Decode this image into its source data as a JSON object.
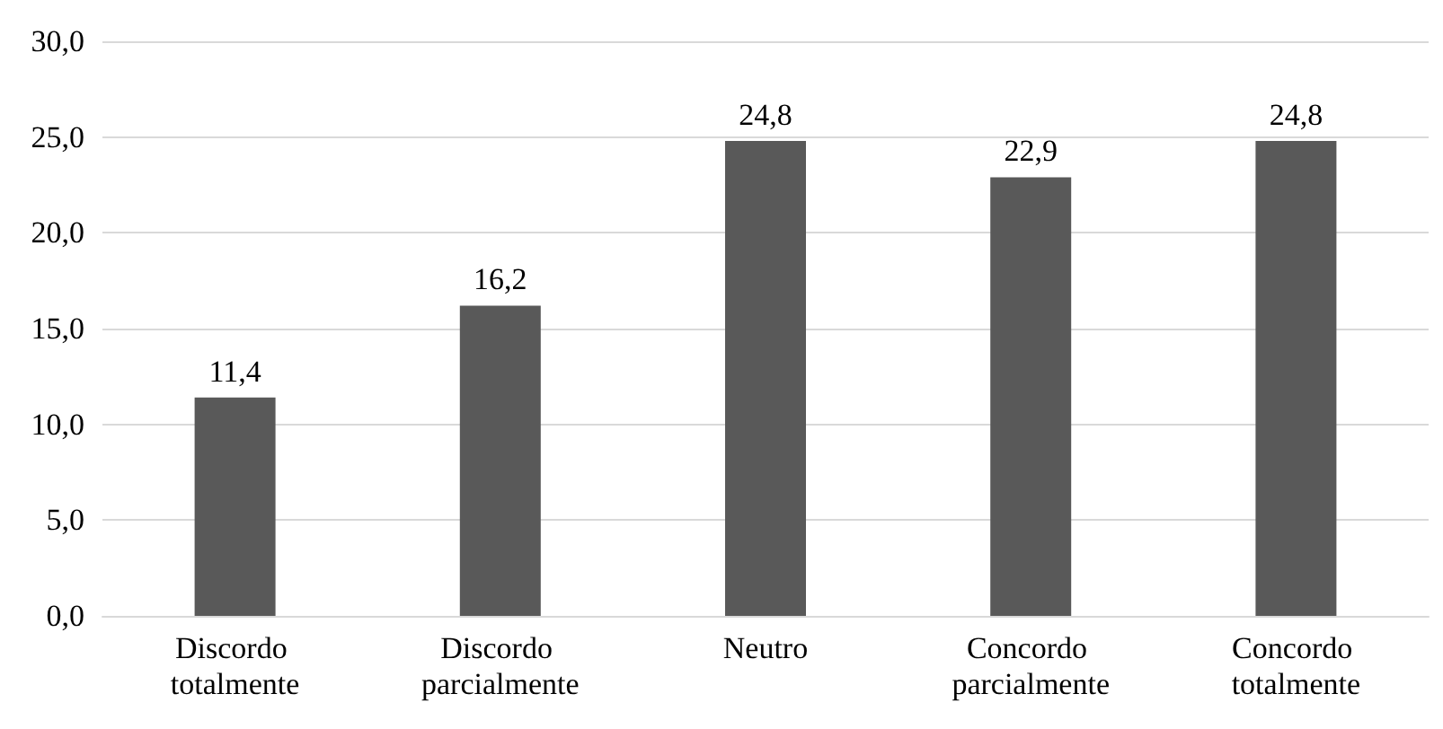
{
  "chart_data": {
    "type": "bar",
    "categories": [
      "Discordo totalmente",
      "Discordo parcialmente",
      "Neutro",
      "Concordo parcialmente",
      "Concordo totalmente"
    ],
    "values": [
      11.4,
      16.2,
      24.8,
      22.9,
      24.8
    ],
    "value_labels": [
      "11,4",
      "16,2",
      "24,8",
      "22,9",
      "24,8"
    ],
    "color": "#595959",
    "ylim": [
      0,
      30
    ],
    "yticks": [
      {
        "value": 0,
        "label": "0,0"
      },
      {
        "value": 5,
        "label": "5,0"
      },
      {
        "value": 10,
        "label": "10,0"
      },
      {
        "value": 15,
        "label": "15,0"
      },
      {
        "value": 20,
        "label": "20,0"
      },
      {
        "value": 25,
        "label": "25,0"
      },
      {
        "value": 30,
        "label": "30,0"
      }
    ],
    "grid": "y"
  }
}
